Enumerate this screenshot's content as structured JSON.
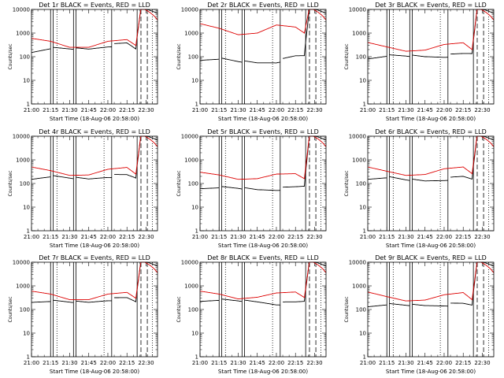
{
  "chart_data": [
    {
      "type": "line",
      "title": "Det 1r BLACK = Events, RED = LLD",
      "xlabel": "Start Time (18-Aug-06 20:58:00)",
      "ylabel": "Counts/sec",
      "xlim": [
        0,
        99
      ],
      "ylim": [
        1,
        10000
      ],
      "yscale": "log",
      "x_ticks": [
        "21:00",
        "21:15",
        "21:30",
        "21:45",
        "22:00",
        "22:15",
        "22:30"
      ],
      "y_ticks": [
        "1",
        "10",
        "100",
        "1000",
        "10000"
      ],
      "series": [
        {
          "name": "Events",
          "color": "#000000",
          "base": [
            150,
            250,
            240,
            230,
            330,
            420,
            250
          ]
        },
        {
          "name": "LLD",
          "color": "#dd0000",
          "base": [
            600,
            450,
            250,
            250,
            450,
            530,
            300
          ]
        }
      ]
    },
    {
      "type": "line",
      "title": "Det 2r BLACK = Events, RED = LLD",
      "xlabel": "Start Time (18-Aug-06 20:58:00)",
      "ylabel": "Counts/sec",
      "xlim": [
        0,
        99
      ],
      "ylim": [
        1,
        10000
      ],
      "yscale": "log",
      "x_ticks": [
        "21:00",
        "21:15",
        "21:30",
        "21:45",
        "22:00",
        "22:15",
        "22:30"
      ],
      "y_ticks": [
        "1",
        "10",
        "100",
        "1000",
        "10000"
      ],
      "series": [
        {
          "name": "Events",
          "color": "#000000",
          "base": [
            70,
            90,
            70,
            60,
            70,
            120,
            130
          ]
        },
        {
          "name": "LLD",
          "color": "#dd0000",
          "base": [
            2500,
            1600,
            850,
            1000,
            2200,
            1800,
            1000
          ]
        }
      ]
    },
    {
      "type": "line",
      "title": "Det 3r BLACK = Events, RED = LLD",
      "xlabel": "Start Time (18-Aug-06 20:58:00)",
      "ylabel": "Counts/sec",
      "xlim": [
        0,
        99
      ],
      "ylim": [
        1,
        10000
      ],
      "yscale": "log",
      "x_ticks": [
        "21:00",
        "21:15",
        "21:30",
        "21:45",
        "22:00",
        "22:15",
        "22:30"
      ],
      "y_ticks": [
        "1",
        "10",
        "100",
        "1000",
        "10000"
      ],
      "series": [
        {
          "name": "Events",
          "color": "#000000",
          "base": [
            80,
            120,
            120,
            110,
            120,
            150,
            160
          ]
        },
        {
          "name": "LLD",
          "color": "#dd0000",
          "base": [
            400,
            260,
            170,
            190,
            330,
            390,
            200
          ]
        }
      ]
    },
    {
      "type": "line",
      "title": "Det 4r BLACK = Events, RED = LLD",
      "xlabel": "Start Time (18-Aug-06 20:58:00)",
      "ylabel": "Counts/sec",
      "xlim": [
        0,
        99
      ],
      "ylim": [
        1,
        10000
      ],
      "yscale": "log",
      "x_ticks": [
        "21:00",
        "21:15",
        "21:30",
        "21:45",
        "22:00",
        "22:15",
        "22:30"
      ],
      "y_ticks": [
        "1",
        "10",
        "100",
        "1000",
        "10000"
      ],
      "series": [
        {
          "name": "Events",
          "color": "#000000",
          "base": [
            150,
            220,
            190,
            170,
            230,
            260,
            200
          ]
        },
        {
          "name": "LLD",
          "color": "#dd0000",
          "base": [
            500,
            350,
            220,
            230,
            400,
            480,
            250
          ]
        }
      ]
    },
    {
      "type": "line",
      "title": "Det 5r BLACK = Events, RED = LLD",
      "xlabel": "Start Time (18-Aug-06 20:58:00)",
      "ylabel": "Counts/sec",
      "xlim": [
        0,
        99
      ],
      "ylim": [
        1,
        10000
      ],
      "yscale": "log",
      "x_ticks": [
        "21:00",
        "21:15",
        "21:30",
        "21:45",
        "22:00",
        "22:15",
        "22:30"
      ],
      "y_ticks": [
        "1",
        "10",
        "100",
        "1000",
        "10000"
      ],
      "series": [
        {
          "name": "Events",
          "color": "#000000",
          "base": [
            60,
            75,
            70,
            60,
            65,
            80,
            90
          ]
        },
        {
          "name": "LLD",
          "color": "#dd0000",
          "base": [
            300,
            230,
            150,
            160,
            250,
            260,
            160
          ]
        }
      ]
    },
    {
      "type": "line",
      "title": "Det 6r BLACK = Events, RED = LLD",
      "xlabel": "Start Time (18-Aug-06 20:58:00)",
      "ylabel": "Counts/sec",
      "xlim": [
        0,
        99
      ],
      "ylim": [
        1,
        10000
      ],
      "yscale": "log",
      "x_ticks": [
        "21:00",
        "21:15",
        "21:30",
        "21:45",
        "22:00",
        "22:15",
        "22:30"
      ],
      "y_ticks": [
        "1",
        "10",
        "100",
        "1000",
        "10000"
      ],
      "series": [
        {
          "name": "Events",
          "color": "#000000",
          "base": [
            150,
            200,
            160,
            140,
            170,
            220,
            180
          ]
        },
        {
          "name": "LLD",
          "color": "#dd0000",
          "base": [
            500,
            330,
            220,
            240,
            420,
            500,
            260
          ]
        }
      ]
    },
    {
      "type": "line",
      "title": "Det 7r BLACK = Events, RED = LLD",
      "xlabel": "Start Time (18-Aug-06 20:58:00)",
      "ylabel": "Counts/sec",
      "xlim": [
        0,
        99
      ],
      "ylim": [
        1,
        10000
      ],
      "yscale": "log",
      "x_ticks": [
        "21:00",
        "21:15",
        "21:30",
        "21:45",
        "22:00",
        "22:15",
        "22:30"
      ],
      "y_ticks": [
        "1",
        "10",
        "100",
        "1000",
        "10000"
      ],
      "series": [
        {
          "name": "Events",
          "color": "#000000",
          "base": [
            200,
            250,
            230,
            220,
            300,
            350,
            250
          ]
        },
        {
          "name": "LLD",
          "color": "#dd0000",
          "base": [
            600,
            450,
            260,
            260,
            450,
            530,
            300
          ]
        }
      ]
    },
    {
      "type": "line",
      "title": "Det 8r BLACK = Events, RED = LLD",
      "xlabel": "Start Time (18-Aug-06 20:58:00)",
      "ylabel": "Counts/sec",
      "xlim": [
        0,
        99
      ],
      "ylim": [
        1,
        10000
      ],
      "yscale": "log",
      "x_ticks": [
        "21:00",
        "21:15",
        "21:30",
        "21:45",
        "22:00",
        "22:15",
        "22:30"
      ],
      "y_ticks": [
        "1",
        "10",
        "100",
        "1000",
        "10000"
      ],
      "series": [
        {
          "name": "Events",
          "color": "#000000",
          "base": [
            220,
            280,
            260,
            230,
            200,
            230,
            260
          ]
        },
        {
          "name": "LLD",
          "color": "#dd0000",
          "base": [
            600,
            450,
            280,
            330,
            500,
            550,
            320
          ]
        }
      ]
    },
    {
      "type": "line",
      "title": "Det 9r BLACK = Events, RED = LLD",
      "xlabel": "Start Time (18-Aug-06 20:58:00)",
      "ylabel": "Counts/sec",
      "xlim": [
        0,
        99
      ],
      "ylim": [
        1,
        10000
      ],
      "yscale": "log",
      "x_ticks": [
        "21:00",
        "21:15",
        "21:30",
        "21:45",
        "22:00",
        "22:15",
        "22:30"
      ],
      "y_ticks": [
        "1",
        "10",
        "100",
        "1000",
        "10000"
      ],
      "series": [
        {
          "name": "Events",
          "color": "#000000",
          "base": [
            130,
            180,
            170,
            160,
            180,
            200,
            180
          ]
        },
        {
          "name": "LLD",
          "color": "#dd0000",
          "base": [
            550,
            350,
            230,
            250,
            420,
            520,
            260
          ]
        }
      ]
    }
  ]
}
